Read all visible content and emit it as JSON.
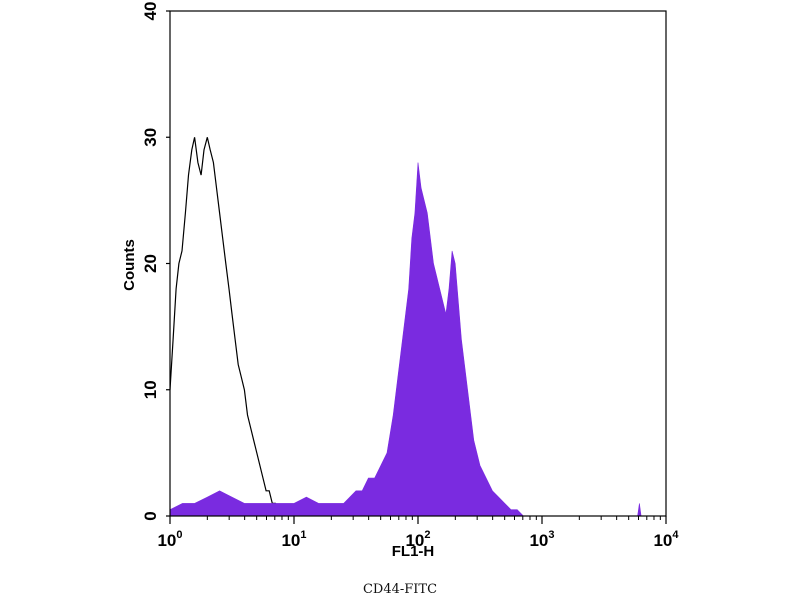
{
  "chart_data": {
    "type": "area",
    "title": "",
    "xlabel": "FL1-H",
    "ylabel": "Counts",
    "caption": "CD44-FITC",
    "x_scale": "log",
    "xlim": [
      1,
      10000
    ],
    "ylim": [
      0,
      40
    ],
    "x_ticks": [
      {
        "value": 1,
        "base": "10",
        "exp": "0"
      },
      {
        "value": 10,
        "base": "10",
        "exp": "1"
      },
      {
        "value": 100,
        "base": "10",
        "exp": "2"
      },
      {
        "value": 1000,
        "base": "10",
        "exp": "3"
      },
      {
        "value": 10000,
        "base": "10",
        "exp": "4"
      }
    ],
    "y_ticks": [
      {
        "value": 0,
        "label": "0"
      },
      {
        "value": 10,
        "label": "10"
      },
      {
        "value": 20,
        "label": "20"
      },
      {
        "value": 30,
        "label": "30"
      },
      {
        "value": 40,
        "label": "40"
      }
    ],
    "grid": false,
    "colors": {
      "filled": "#7a2be0",
      "outline": "#000000"
    },
    "series": [
      {
        "style": "outline",
        "color": "#000000",
        "x": [
          1.0,
          1.06,
          1.12,
          1.18,
          1.25,
          1.33,
          1.41,
          1.5,
          1.58,
          1.68,
          1.78,
          1.88,
          2.0,
          2.11,
          2.24,
          2.37,
          2.51,
          2.66,
          2.82,
          2.99,
          3.16,
          3.35,
          3.55,
          3.76,
          3.98,
          4.22,
          4.47,
          4.73,
          5.01,
          5.31,
          5.62,
          5.96,
          6.31,
          6.68,
          7.08,
          7.5,
          7.94,
          8.41,
          8.91,
          10.0
        ],
        "y": [
          10,
          14,
          18,
          20,
          21,
          24,
          27,
          29,
          30,
          28,
          27,
          29,
          30,
          29,
          28,
          26,
          24,
          22,
          20,
          18,
          16,
          14,
          12,
          11,
          10,
          8,
          7,
          6,
          5,
          4,
          3,
          2,
          2,
          1,
          1,
          0.5,
          0.5,
          0.3,
          0.2,
          0
        ]
      },
      {
        "style": "filled",
        "color": "#7a2be0",
        "x": [
          1.0,
          1.26,
          1.58,
          2.0,
          2.51,
          3.16,
          3.98,
          5.01,
          6.31,
          7.94,
          10.0,
          12.6,
          15.8,
          20.0,
          25.1,
          31.6,
          35.5,
          39.8,
          44.7,
          50.1,
          56.2,
          63.1,
          70.8,
          79.4,
          84.1,
          89.1,
          94.4,
          100.0,
          106.0,
          112.2,
          118.9,
          125.9,
          133.4,
          141.3,
          149.6,
          158.5,
          167.9,
          177.8,
          188.4,
          199.5,
          211.3,
          223.9,
          237.1,
          251.2,
          266.1,
          281.8,
          316.2,
          354.8,
          398.1,
          446.7,
          501.2,
          562.3,
          631.0,
          707.9,
          1000.0,
          2000.0,
          4000.0,
          5900.0,
          6100.0,
          6300.0,
          8000.0,
          10000.0
        ],
        "y": [
          0.5,
          1,
          1,
          1.5,
          2,
          1.5,
          1,
          1,
          1,
          1,
          1,
          1.5,
          1,
          1,
          1,
          2,
          2,
          3,
          3,
          4,
          5,
          8,
          12,
          16,
          18,
          22,
          24,
          28,
          26,
          25,
          24,
          22,
          20,
          19,
          18,
          17,
          16,
          18,
          21,
          20,
          17,
          14,
          12,
          10,
          8,
          6,
          4,
          3,
          2,
          1.5,
          1,
          0.5,
          0.5,
          0,
          0,
          0,
          0,
          0,
          1,
          0,
          0,
          0
        ]
      }
    ]
  }
}
